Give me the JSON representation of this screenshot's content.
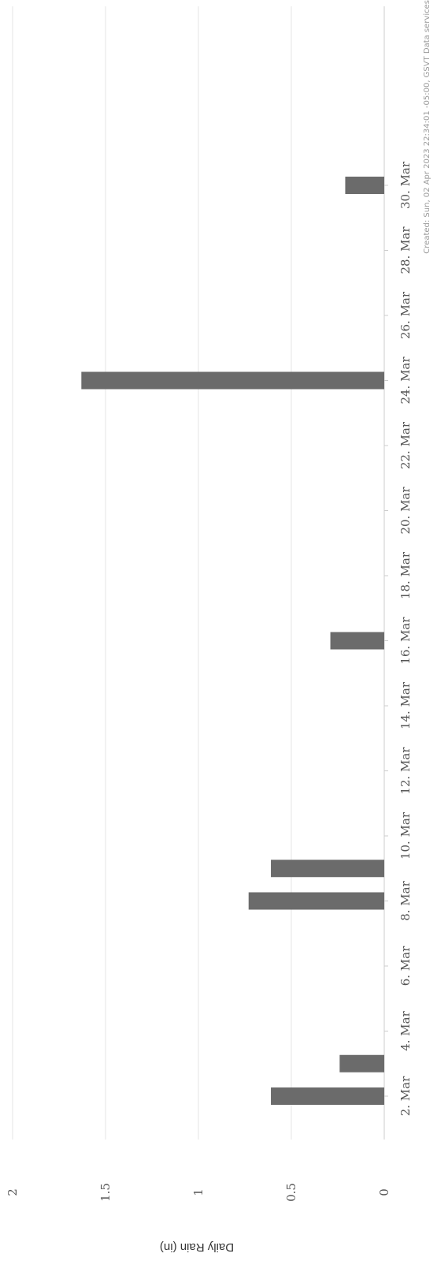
{
  "chart_data": {
    "type": "bar",
    "orientation": "rotated-90",
    "ylabel": "Daily Rain (in)",
    "ylim": [
      0,
      2
    ],
    "y_ticks": [
      "0",
      "0.5",
      "1",
      "1.5",
      "2"
    ],
    "x_ticks": [
      "2. Mar",
      "4. Mar",
      "6. Mar",
      "8. Mar",
      "10. Mar",
      "12. Mar",
      "14. Mar",
      "16. Mar",
      "18. Mar",
      "20. Mar",
      "22. Mar",
      "24. Mar",
      "26. Mar",
      "28. Mar",
      "30. Mar"
    ],
    "categories": [
      "2. Mar",
      "3. Mar",
      "8. Mar",
      "9. Mar",
      "16. Mar",
      "24. Mar",
      "30. Mar"
    ],
    "values": [
      0.61,
      0.24,
      0.73,
      0.61,
      0.29,
      1.63,
      0.21
    ],
    "credit": "Created: Sun, 02 Apr 2023 22:34:01 -05:00, GSVT Data services",
    "colors": {
      "bar": "#6b6b6b",
      "grid": "#e6e6e6",
      "axis": "#cccccc"
    },
    "grid": true,
    "legend": "none"
  }
}
